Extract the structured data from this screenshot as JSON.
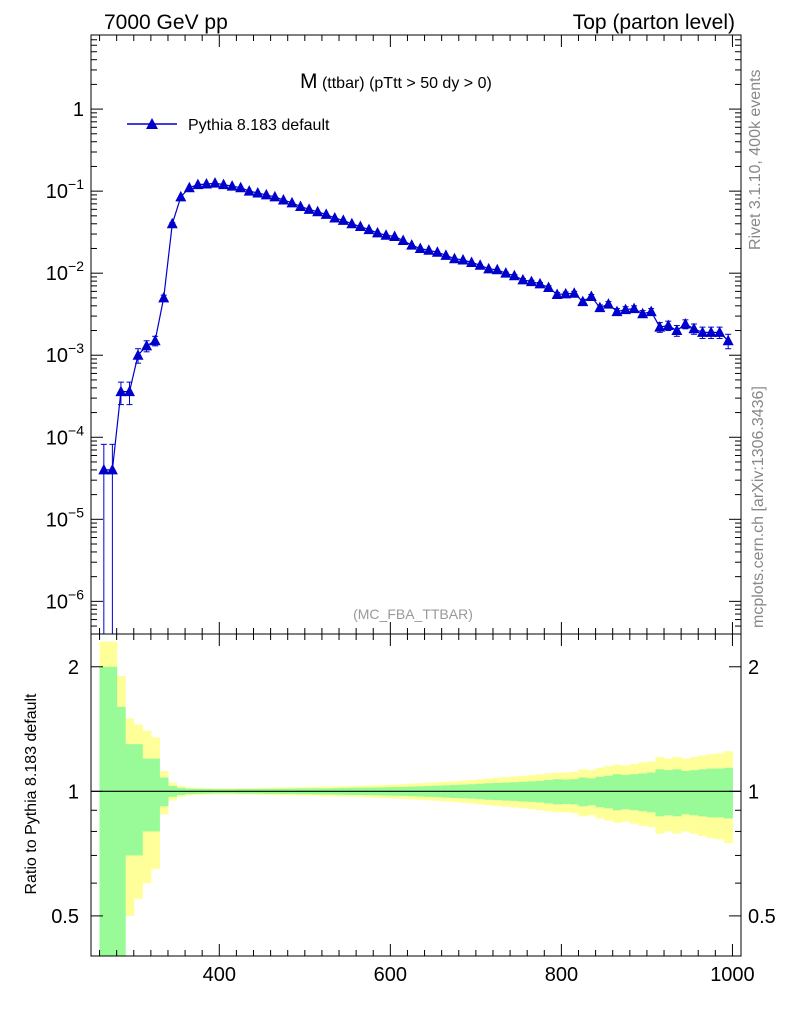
{
  "header": {
    "left": "7000 GeV pp",
    "right": "Top (parton level)"
  },
  "side": {
    "rivet": "Rivet 3.1.10,  400k events",
    "mcplots": "mcplots.cern.ch [arXiv:1306.3436]"
  },
  "chart_data": [
    {
      "type": "line",
      "title_main": "M",
      "title_rest": " (ttbar) (pTtt > 50 dy > 0)",
      "watermark": "(MC_FBA_TTBAR)",
      "yscale": "log",
      "xlim": [
        250,
        1010
      ],
      "ylim": [
        4e-07,
        8
      ],
      "ytick_labels": [
        {
          "base": "1",
          "exp": ""
        },
        {
          "base": "10",
          "exp": "−1"
        },
        {
          "base": "10",
          "exp": "−2"
        },
        {
          "base": "10",
          "exp": "−3"
        },
        {
          "base": "10",
          "exp": "−4"
        },
        {
          "base": "10",
          "exp": "−5"
        },
        {
          "base": "10",
          "exp": "−6"
        }
      ],
      "ytick_values": [
        1,
        0.1,
        0.01,
        0.001,
        0.0001,
        1e-05,
        1e-06
      ],
      "legend_position": "top-left",
      "color": "#0000cc",
      "series": [
        {
          "name": "Pythia 8.183 default",
          "x": [
            265,
            275,
            285,
            295,
            305,
            315,
            325,
            335,
            345,
            355,
            365,
            375,
            385,
            395,
            405,
            415,
            425,
            435,
            445,
            455,
            465,
            475,
            485,
            495,
            505,
            515,
            525,
            535,
            545,
            555,
            565,
            575,
            585,
            595,
            605,
            615,
            625,
            635,
            645,
            655,
            665,
            675,
            685,
            695,
            705,
            715,
            725,
            735,
            745,
            755,
            765,
            775,
            785,
            795,
            805,
            815,
            825,
            835,
            845,
            855,
            865,
            875,
            885,
            895,
            905,
            915,
            925,
            935,
            945,
            955,
            965,
            975,
            985,
            995
          ],
          "y": [
            4e-05,
            4e-05,
            0.00036,
            0.00036,
            0.001,
            0.0013,
            0.0015,
            0.005,
            0.04,
            0.085,
            0.11,
            0.12,
            0.122,
            0.125,
            0.12,
            0.115,
            0.11,
            0.1,
            0.095,
            0.09,
            0.085,
            0.078,
            0.072,
            0.065,
            0.06,
            0.056,
            0.052,
            0.047,
            0.044,
            0.04,
            0.037,
            0.034,
            0.031,
            0.029,
            0.028,
            0.025,
            0.022,
            0.02,
            0.019,
            0.018,
            0.0165,
            0.015,
            0.0145,
            0.0135,
            0.0125,
            0.0113,
            0.011,
            0.01,
            0.0093,
            0.0083,
            0.0079,
            0.0074,
            0.0067,
            0.0055,
            0.0056,
            0.0057,
            0.0045,
            0.0052,
            0.0038,
            0.0042,
            0.0034,
            0.0036,
            0.0037,
            0.0032,
            0.0034,
            0.0022,
            0.0023,
            0.002,
            0.0024,
            0.0021,
            0.0019,
            0.0019,
            0.0019,
            0.0015
          ],
          "yerr": [
            4.2e-05,
            4.2e-05,
            0.00011,
            0.00011,
            0.0002,
            0.0002,
            0.0002,
            0.0004,
            0.0012,
            0.0015,
            0.0015,
            0.0015,
            0.0015,
            0.0015,
            0.0015,
            0.0015,
            0.0014,
            0.0013,
            0.0012,
            0.0012,
            0.0011,
            0.001,
            0.001,
            0.0009,
            0.0009,
            0.0008,
            0.0008,
            0.0007,
            0.0007,
            0.0006,
            0.0006,
            0.0006,
            0.0005,
            0.0005,
            0.0005,
            0.0005,
            0.0004,
            0.0004,
            0.0004,
            0.0004,
            0.0004,
            0.0004,
            0.0004,
            0.0003,
            0.0003,
            0.0003,
            0.0003,
            0.0003,
            0.0003,
            0.0003,
            0.0003,
            0.0003,
            0.0003,
            0.0003,
            0.0003,
            0.0003,
            0.0003,
            0.0003,
            0.0003,
            0.0003,
            0.0003,
            0.0003,
            0.0003,
            0.0003,
            0.0003,
            0.0003,
            0.0003,
            0.0003,
            0.0003,
            0.0003,
            0.0003,
            0.0003,
            0.0003,
            0.0003
          ]
        }
      ]
    },
    {
      "type": "area",
      "ylabel": "Ratio to Pythia 8.183 default",
      "yscale": "log",
      "xlim": [
        250,
        1010
      ],
      "ylim": [
        0.4,
        2.4
      ],
      "ytick_values": [
        0.5,
        1,
        2
      ],
      "ytick_labels": [
        "0.5",
        "1",
        "2"
      ],
      "xtick_values": [
        400,
        600,
        800,
        1000
      ],
      "xtick_labels": [
        "400",
        "600",
        "800",
        "1000"
      ],
      "reference_line": 1,
      "colors": {
        "inner": "#98fb98",
        "outer": "#ffff99"
      },
      "bin_width": 10,
      "bands": {
        "x": [
          265,
          275,
          285,
          295,
          305,
          315,
          325,
          335,
          345,
          355,
          365,
          375,
          385,
          395,
          405,
          415,
          425,
          435,
          445,
          455,
          465,
          475,
          485,
          495,
          505,
          515,
          525,
          535,
          545,
          555,
          565,
          575,
          585,
          595,
          605,
          615,
          625,
          635,
          645,
          655,
          665,
          675,
          685,
          695,
          705,
          715,
          725,
          735,
          745,
          755,
          765,
          775,
          785,
          795,
          805,
          815,
          825,
          835,
          845,
          855,
          865,
          875,
          885,
          895,
          905,
          915,
          925,
          935,
          945,
          955,
          965,
          975,
          985,
          995
        ],
        "inner_half": [
          1.0,
          1.0,
          0.6,
          0.3,
          0.3,
          0.2,
          0.2,
          0.08,
          0.03,
          0.02,
          0.015,
          0.014,
          0.013,
          0.012,
          0.012,
          0.012,
          0.013,
          0.013,
          0.013,
          0.014,
          0.014,
          0.015,
          0.015,
          0.016,
          0.016,
          0.017,
          0.017,
          0.018,
          0.019,
          0.02,
          0.02,
          0.021,
          0.022,
          0.023,
          0.024,
          0.025,
          0.027,
          0.028,
          0.03,
          0.032,
          0.034,
          0.036,
          0.038,
          0.04,
          0.043,
          0.046,
          0.048,
          0.05,
          0.052,
          0.055,
          0.057,
          0.06,
          0.065,
          0.07,
          0.068,
          0.07,
          0.08,
          0.075,
          0.085,
          0.09,
          0.1,
          0.095,
          0.1,
          0.105,
          0.11,
          0.13,
          0.125,
          0.13,
          0.12,
          0.125,
          0.13,
          0.135,
          0.135,
          0.14
        ],
        "outer_half": [
          1.3,
          1.3,
          0.9,
          0.5,
          0.45,
          0.4,
          0.35,
          0.12,
          0.05,
          0.03,
          0.022,
          0.02,
          0.018,
          0.017,
          0.017,
          0.017,
          0.018,
          0.018,
          0.019,
          0.02,
          0.021,
          0.022,
          0.023,
          0.024,
          0.025,
          0.026,
          0.027,
          0.028,
          0.029,
          0.03,
          0.031,
          0.033,
          0.035,
          0.037,
          0.039,
          0.041,
          0.044,
          0.046,
          0.049,
          0.052,
          0.055,
          0.058,
          0.062,
          0.065,
          0.07,
          0.074,
          0.078,
          0.082,
          0.086,
          0.09,
          0.094,
          0.1,
          0.105,
          0.11,
          0.11,
          0.115,
          0.13,
          0.125,
          0.14,
          0.15,
          0.16,
          0.155,
          0.165,
          0.175,
          0.18,
          0.21,
          0.2,
          0.21,
          0.2,
          0.21,
          0.22,
          0.23,
          0.235,
          0.25
        ]
      }
    }
  ]
}
